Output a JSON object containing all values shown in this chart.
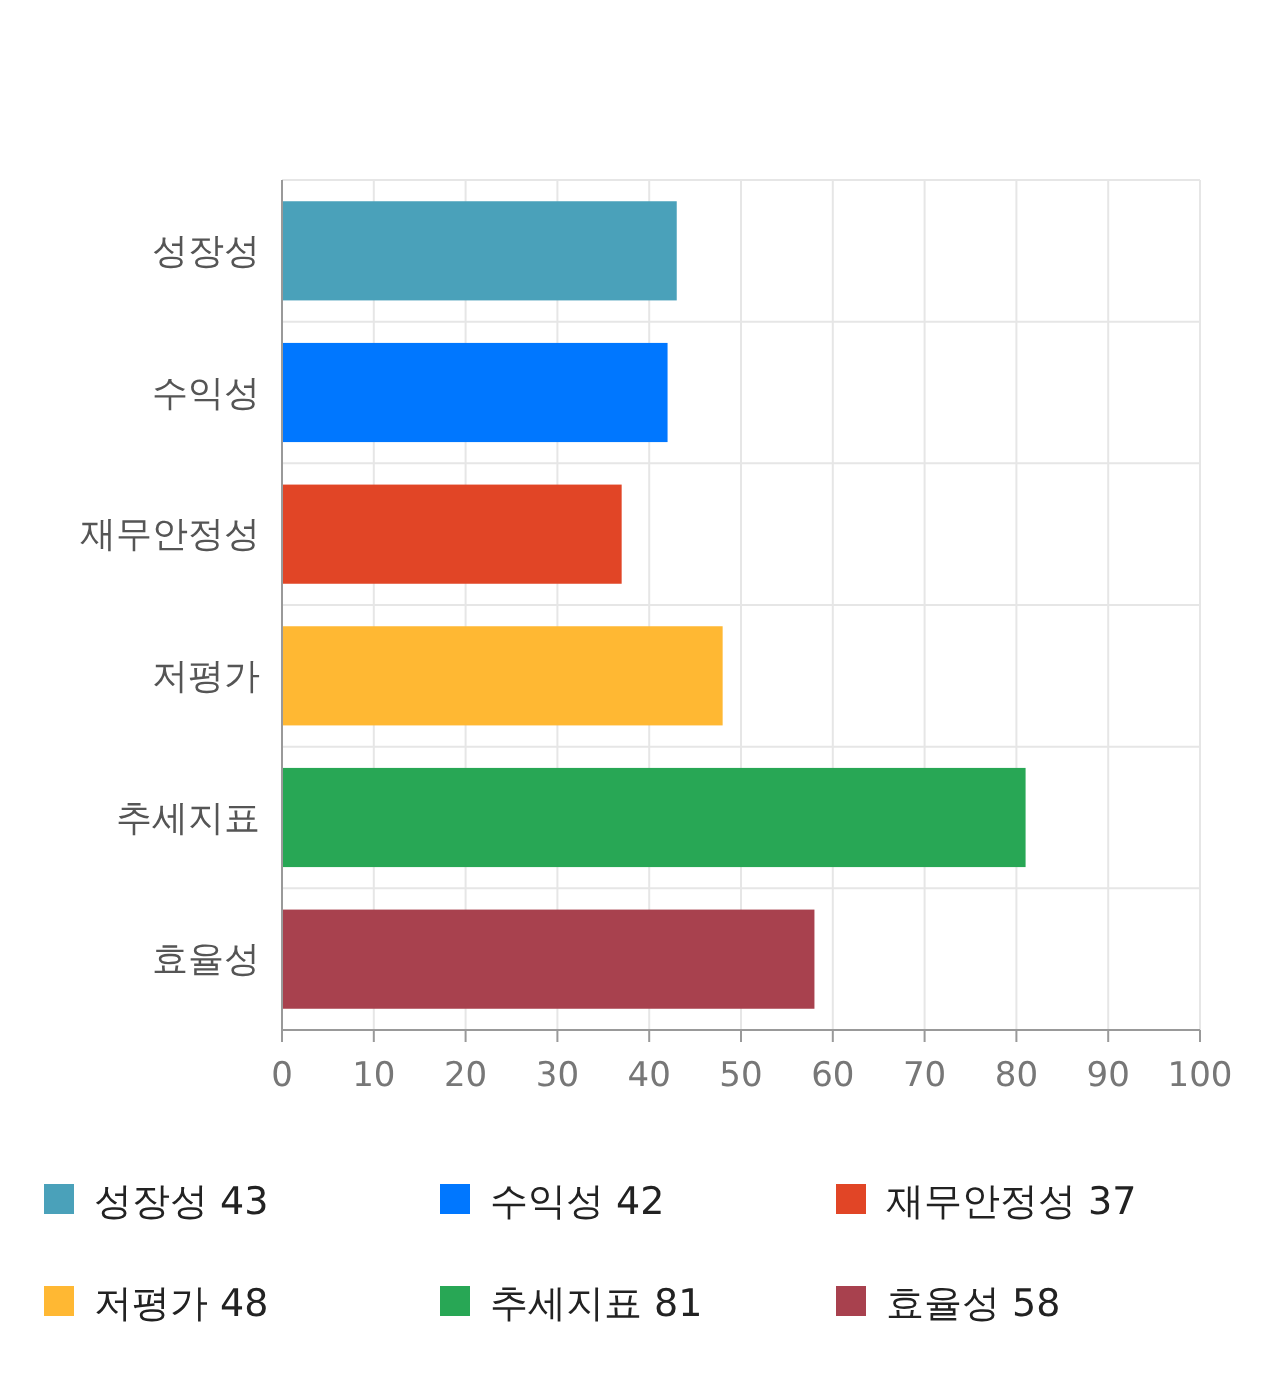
{
  "chart_data": {
    "type": "bar",
    "orientation": "horizontal",
    "stacked": true,
    "categories": [
      "성장성",
      "수익성",
      "재무안정성",
      "저평가",
      "추세지표",
      "효율성"
    ],
    "series": [
      {
        "name": "성장성 43",
        "color": "#4aa1ba",
        "values": [
          43,
          null,
          null,
          null,
          null,
          null
        ]
      },
      {
        "name": "수익성 42",
        "color": "#0077ff",
        "values": [
          null,
          42,
          null,
          null,
          null,
          null
        ]
      },
      {
        "name": "재무안정성 37",
        "color": "#e14526",
        "values": [
          null,
          null,
          37,
          null,
          null,
          null
        ]
      },
      {
        "name": "저평가 48",
        "color": "#ffb833",
        "values": [
          null,
          null,
          null,
          48,
          null,
          null
        ]
      },
      {
        "name": "추세지표 81",
        "color": "#28a755",
        "values": [
          null,
          null,
          null,
          null,
          81,
          null
        ]
      },
      {
        "name": "효율성 58",
        "color": "#a8414e",
        "values": [
          null,
          null,
          null,
          null,
          null,
          58
        ]
      }
    ],
    "xlim": [
      0,
      100
    ],
    "xticks": [
      0,
      10,
      20,
      30,
      40,
      50,
      60,
      70,
      80,
      90,
      100
    ],
    "grid": true,
    "legend": "bottom"
  }
}
